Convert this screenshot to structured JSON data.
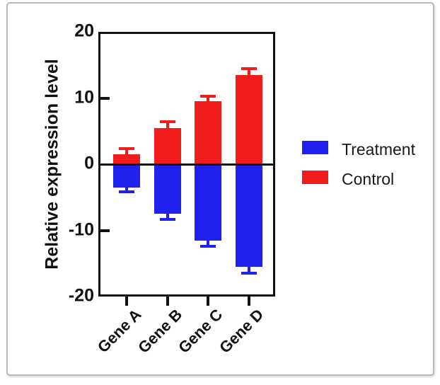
{
  "figure": {
    "background_color": "#ffffff",
    "frame_border_color": "#b6b9bc",
    "axis_color": "#111111",
    "text_color": "#1a1a1a"
  },
  "chart_data": {
    "type": "bar",
    "title": "",
    "xlabel": "",
    "ylabel": "Relative expression level",
    "categories": [
      "Gene A",
      "Gene B",
      "Gene C",
      "Gene D"
    ],
    "series": [
      {
        "name": "Treatment",
        "color": "#2121ee",
        "values": [
          -3.5,
          -7.5,
          -11.5,
          -15.5
        ],
        "errors": [
          0.7,
          0.8,
          0.9,
          1.0
        ]
      },
      {
        "name": "Control",
        "color": "#f11d1d",
        "values": [
          1.5,
          5.5,
          9.5,
          13.5
        ],
        "errors": [
          0.8,
          0.9,
          0.8,
          0.9
        ]
      }
    ],
    "ylim": [
      -20,
      20
    ],
    "yticks": [
      20,
      10,
      0,
      -10,
      -20
    ],
    "grid": false,
    "error_bars": true,
    "legend_position": "right",
    "legend_entries": [
      "Treatment",
      "Control"
    ]
  }
}
